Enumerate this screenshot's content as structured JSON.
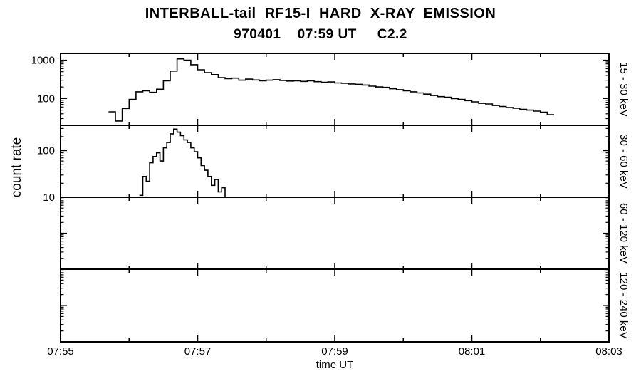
{
  "colors": {
    "foreground": "#000000",
    "background": "#ffffff"
  },
  "chart_data": {
    "type": "line",
    "title": "INTERBALL-tail  RF15-I  HARD  X-RAY  EMISSION",
    "subtitle": "970401    07:59 UT     C2.2",
    "xlabel": "time UT",
    "ylabel": "count rate",
    "x_ticks": [
      "07:55",
      "07:57",
      "07:59",
      "08:01",
      "08:03"
    ],
    "x_range_minutes": [
      0,
      8
    ],
    "x_major_every": 2,
    "x_minor_every": 1,
    "yscale": "log",
    "grid": false,
    "panels": [
      {
        "band": "15 - 30 keV",
        "ylim": [
          20,
          1500
        ],
        "yticks": [
          {
            "label": "1000",
            "value": 1000
          },
          {
            "label": "100",
            "value": 100
          }
        ],
        "series": {
          "t0": 0.7,
          "dt": 0.1,
          "v": [
            45,
            26,
            55,
            95,
            150,
            160,
            145,
            175,
            290,
            520,
            1080,
            1000,
            760,
            560,
            470,
            420,
            350,
            330,
            340,
            300,
            320,
            305,
            290,
            300,
            310,
            295,
            285,
            290,
            280,
            290,
            275,
            265,
            270,
            255,
            250,
            240,
            235,
            225,
            210,
            200,
            195,
            180,
            170,
            160,
            150,
            140,
            130,
            120,
            112,
            108,
            100,
            95,
            88,
            82,
            75,
            72,
            66,
            62,
            58,
            56,
            52,
            50,
            47,
            44,
            38
          ]
        }
      },
      {
        "band": "30 - 60 keV",
        "ylim": [
          10,
          350
        ],
        "yticks": [
          {
            "label": "100",
            "value": 100
          },
          {
            "label": "10",
            "value": 10
          }
        ],
        "series": {
          "t0": 1.15,
          "dt": 0.05,
          "v": [
            11,
            28,
            22,
            55,
            75,
            90,
            60,
            115,
            150,
            230,
            290,
            250,
            210,
            170,
            150,
            115,
            95,
            70,
            48,
            38,
            28,
            18,
            24,
            13,
            16,
            10
          ]
        }
      },
      {
        "band": "60 - 120 keV",
        "ylim": [
          1,
          100
        ],
        "yticks": [],
        "series": {
          "t0": 0,
          "dt": 0.1,
          "v": []
        }
      },
      {
        "band": "120 - 240 keV",
        "ylim": [
          1,
          100
        ],
        "yticks": [],
        "series": {
          "t0": 0,
          "dt": 0.1,
          "v": []
        }
      }
    ]
  }
}
